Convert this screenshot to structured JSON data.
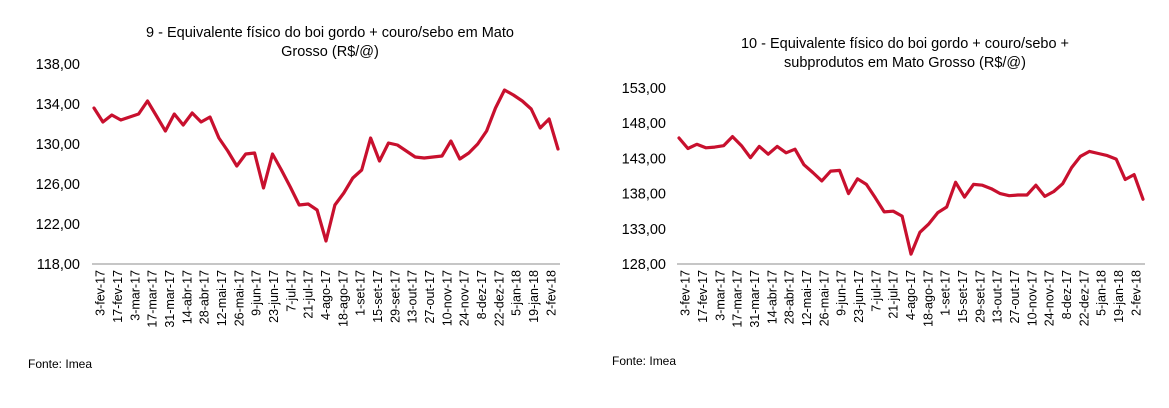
{
  "chart_data": [
    {
      "type": "line",
      "title": "9 - Equivalente físico do boi gordo + couro/sebo em Mato Grosso (R$/@)",
      "title_lines": [
        "9 - Equivalente físico do boi gordo + couro/sebo em Mato",
        "Grosso (R$/@)"
      ],
      "source": "Fonte: Imea",
      "y_ticks": [
        "138,00",
        "134,00",
        "130,00",
        "126,00",
        "122,00",
        "118,00"
      ],
      "ylim": [
        118,
        138
      ],
      "x_tick_labels": [
        "3-fev-17",
        "17-fev-17",
        "3-mar-17",
        "17-mar-17",
        "31-mar-17",
        "14-abr-17",
        "28-abr-17",
        "12-mai-17",
        "26-mai-17",
        "9-jun-17",
        "23-jun-17",
        "7-jul-17",
        "21-jul-17",
        "4-ago-17",
        "18-ago-17",
        "1-set-17",
        "15-set-17",
        "29-set-17",
        "13-out-17",
        "27-out-17",
        "10-nov-17",
        "24-nov-17",
        "8-dez-17",
        "22-dez-17",
        "5-jan-18",
        "19-jan-18",
        "2-fev-18"
      ],
      "grid": false,
      "line_color": "#c8102e",
      "series": [
        {
          "values": [
            133.6,
            132.2,
            132.9,
            132.4,
            132.7,
            133.0,
            134.3,
            132.8,
            131.3,
            133.0,
            131.9,
            133.1,
            132.2,
            132.7,
            130.6,
            129.3,
            127.8,
            129.0,
            129.1,
            125.6,
            129.0,
            127.4,
            125.7,
            123.9,
            124.0,
            123.4,
            120.3,
            123.9,
            125.1,
            126.6,
            127.4,
            130.6,
            128.3,
            130.1,
            129.9,
            129.3,
            128.7,
            128.6,
            128.7,
            128.8,
            130.3,
            128.5,
            129.1,
            130.0,
            131.3,
            133.6,
            135.4,
            134.9,
            134.3,
            133.5,
            131.6,
            132.5,
            129.5
          ]
        }
      ]
    },
    {
      "type": "line",
      "title": "10 - Equivalente físico do boi gordo + couro/sebo + subprodutos em Mato Grosso (R$/@)",
      "title_lines": [
        "10 - Equivalente físico do boi gordo + couro/sebo +",
        "subprodutos em Mato Grosso (R$/@)"
      ],
      "source": "Fonte: Imea",
      "y_ticks": [
        "153,00",
        "148,00",
        "143,00",
        "138,00",
        "133,00",
        "128,00"
      ],
      "ylim": [
        128,
        153
      ],
      "x_tick_labels": [
        "3-fev-17",
        "17-fev-17",
        "3-mar-17",
        "17-mar-17",
        "31-mar-17",
        "14-abr-17",
        "28-abr-17",
        "12-mai-17",
        "26-mai-17",
        "9-jun-17",
        "23-jun-17",
        "7-jul-17",
        "21-jul-17",
        "4-ago-17",
        "18-ago-17",
        "1-set-17",
        "15-set-17",
        "29-set-17",
        "13-out-17",
        "27-out-17",
        "10-nov-17",
        "24-nov-17",
        "8-dez-17",
        "22-dez-17",
        "5-jan-18",
        "19-jan-18",
        "2-fev-18"
      ],
      "grid": false,
      "line_color": "#c8102e",
      "series": [
        {
          "values": [
            145.9,
            144.4,
            145.0,
            144.5,
            144.6,
            144.8,
            146.1,
            144.8,
            143.1,
            144.7,
            143.6,
            144.7,
            143.8,
            144.3,
            142.1,
            141.0,
            139.8,
            141.2,
            141.3,
            138.0,
            140.1,
            139.3,
            137.4,
            135.4,
            135.5,
            134.8,
            129.4,
            132.5,
            133.7,
            135.3,
            136.1,
            139.6,
            137.5,
            139.3,
            139.2,
            138.7,
            138.0,
            137.7,
            137.8,
            137.8,
            139.2,
            137.6,
            138.3,
            139.4,
            141.7,
            143.3,
            144.0,
            143.7,
            143.4,
            142.9,
            140.0,
            140.7,
            137.2
          ]
        }
      ]
    }
  ]
}
